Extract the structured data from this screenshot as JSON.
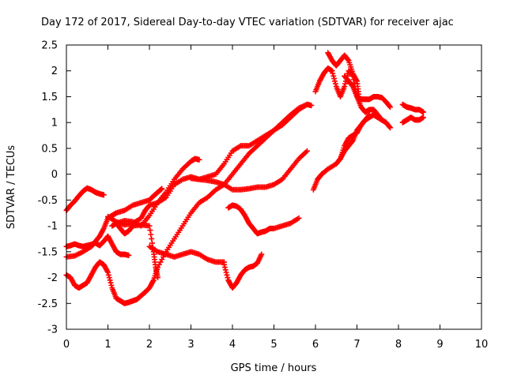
{
  "chart_data": {
    "type": "scatter",
    "title": "Day 172 of 2017, Sidereal Day-to-day VTEC variation (SDTVAR) for receiver ajac",
    "xlabel": "GPS time / hours",
    "ylabel": "SDTVAR / TECUs",
    "xlim": [
      0,
      10
    ],
    "ylim": [
      -3,
      2.5
    ],
    "xticks": [
      "0",
      "1",
      "2",
      "3",
      "4",
      "5",
      "6",
      "7",
      "8",
      "9",
      "10"
    ],
    "yticks": [
      "-3",
      "-2.5",
      "-2",
      "-1.5",
      "-1",
      "-0.5",
      "0",
      "0.5",
      "1",
      "1.5",
      "2",
      "2.5"
    ],
    "grid": false,
    "marker": "plus",
    "color": "#ff0000",
    "series": [
      {
        "x": [
          0.0,
          0.1,
          0.2,
          0.3,
          0.4,
          0.5,
          0.6,
          0.7,
          0.8,
          0.9
        ],
        "values": [
          -0.7,
          -0.6,
          -0.52,
          -0.42,
          -0.33,
          -0.27,
          -0.3,
          -0.35,
          -0.38,
          -0.4
        ]
      },
      {
        "x": [
          0.0,
          0.1,
          0.2,
          0.3,
          0.4,
          0.5,
          0.6,
          0.7,
          0.8,
          0.9,
          1.0,
          1.1,
          1.2,
          1.3,
          1.4,
          1.5,
          1.6
        ],
        "values": [
          -1.95,
          -2.0,
          -2.15,
          -2.2,
          -2.15,
          -2.1,
          -1.95,
          -1.8,
          -1.7,
          -1.75,
          -1.9,
          -2.2,
          -2.4,
          -2.45,
          -2.5,
          -2.48,
          -2.45
        ]
      },
      {
        "x": [
          1.6,
          1.7,
          1.8,
          1.9,
          2.0,
          2.1,
          2.2
        ],
        "values": [
          -2.45,
          -2.42,
          -2.35,
          -2.28,
          -2.2,
          -2.05,
          -1.8
        ]
      },
      {
        "x": [
          0.0,
          0.1,
          0.2,
          0.3,
          0.4,
          0.5,
          0.6,
          0.7,
          0.8,
          0.9,
          1.0,
          1.1,
          1.2,
          1.3,
          1.4,
          1.5
        ],
        "values": [
          -1.4,
          -1.38,
          -1.35,
          -1.38,
          -1.4,
          -1.38,
          -1.36,
          -1.33,
          -1.38,
          -1.3,
          -1.2,
          -1.35,
          -1.5,
          -1.55,
          -1.55,
          -1.57
        ]
      },
      {
        "x": [
          0.0,
          0.2,
          0.4,
          0.6,
          0.7,
          0.8,
          0.9,
          1.0,
          1.1,
          1.2,
          1.4,
          1.6,
          1.8,
          2.0,
          2.1,
          2.2,
          2.3
        ],
        "values": [
          -1.6,
          -1.58,
          -1.5,
          -1.4,
          -1.3,
          -1.2,
          -1.05,
          -0.85,
          -0.8,
          -0.75,
          -0.7,
          -0.6,
          -0.55,
          -0.5,
          -0.42,
          -0.35,
          -0.28
        ]
      },
      {
        "x": [
          1.0,
          1.2,
          1.4,
          1.6,
          1.8,
          1.9,
          2.0,
          2.2,
          2.4,
          2.6,
          2.8,
          3.0,
          3.2,
          3.4,
          3.6,
          3.8,
          4.0,
          4.2,
          4.4,
          4.6,
          4.8,
          5.0,
          5.2,
          5.4,
          5.6,
          5.8
        ],
        "values": [
          -0.82,
          -0.92,
          -0.98,
          -0.95,
          -0.85,
          -0.7,
          -0.6,
          -0.55,
          -0.45,
          -0.2,
          -0.1,
          -0.05,
          -0.1,
          -0.12,
          -0.15,
          -0.2,
          -0.3,
          -0.3,
          -0.28,
          -0.25,
          -0.25,
          -0.2,
          -0.1,
          0.1,
          0.3,
          0.45
        ]
      },
      {
        "x": [
          1.1,
          1.2,
          1.4,
          1.6,
          1.8,
          2.0,
          2.2,
          2.4,
          2.6,
          2.8,
          3.0,
          3.1,
          3.2
        ],
        "values": [
          -1.0,
          -0.95,
          -0.9,
          -0.92,
          -1.0,
          -0.8,
          -0.55,
          -0.35,
          -0.1,
          0.1,
          0.25,
          0.3,
          0.28
        ]
      },
      {
        "x": [
          1.2,
          1.3,
          1.4,
          1.5,
          1.6,
          1.8,
          2.0,
          2.1,
          2.15,
          2.2
        ],
        "values": [
          -0.95,
          -1.05,
          -1.15,
          -1.1,
          -1.0,
          -0.98,
          -1.0,
          -1.5,
          -1.8,
          -2.0
        ]
      },
      {
        "x": [
          2.2,
          2.4,
          2.6,
          2.8,
          3.0,
          3.2,
          3.4,
          3.6,
          3.8,
          4.0,
          4.2,
          4.4,
          4.6,
          4.8,
          5.0,
          5.2,
          5.4,
          5.6,
          5.8,
          5.9
        ],
        "values": [
          -1.8,
          -1.5,
          -1.25,
          -1.0,
          -0.75,
          -0.55,
          -0.45,
          -0.3,
          -0.2,
          0.0,
          0.2,
          0.4,
          0.55,
          0.7,
          0.85,
          1.0,
          1.15,
          1.28,
          1.35,
          1.33
        ]
      },
      {
        "x": [
          2.0,
          2.2,
          2.4,
          2.6,
          2.8,
          3.0,
          3.2,
          3.4,
          3.6,
          3.8
        ],
        "values": [
          -1.4,
          -1.5,
          -1.55,
          -1.6,
          -1.55,
          -1.5,
          -1.55,
          -1.65,
          -1.7,
          -1.7
        ]
      },
      {
        "x": [
          3.8,
          3.9,
          4.0,
          4.1,
          4.2,
          4.3,
          4.4,
          4.5,
          4.6,
          4.7
        ],
        "values": [
          -1.75,
          -2.05,
          -2.2,
          -2.1,
          -1.95,
          -1.85,
          -1.8,
          -1.78,
          -1.72,
          -1.55
        ]
      },
      {
        "x": [
          3.9,
          4.0,
          4.1,
          4.2,
          4.3,
          4.4,
          4.5,
          4.6,
          4.7,
          4.8,
          4.9,
          5.0,
          5.2,
          5.4,
          5.6
        ],
        "values": [
          -0.65,
          -0.6,
          -0.62,
          -0.68,
          -0.8,
          -0.95,
          -1.05,
          -1.15,
          -1.12,
          -1.1,
          -1.05,
          -1.05,
          -1.0,
          -0.95,
          -0.85
        ]
      },
      {
        "x": [
          3.0,
          3.2,
          3.4,
          3.6,
          3.8,
          4.0,
          4.2,
          4.4,
          4.6,
          4.8,
          5.0
        ],
        "values": [
          -0.08,
          -0.1,
          -0.05,
          0.0,
          0.2,
          0.45,
          0.55,
          0.55,
          0.65,
          0.75,
          0.85
        ]
      },
      {
        "x": [
          5.0,
          5.2,
          5.4,
          5.6,
          5.8
        ],
        "values": [
          0.85,
          0.95,
          1.1,
          1.25,
          1.35
        ]
      },
      {
        "x": [
          6.0,
          6.1,
          6.2,
          6.3,
          6.4,
          6.5,
          6.6,
          6.7,
          6.8,
          6.9,
          7.0,
          7.1,
          7.2,
          7.3,
          7.4,
          7.5,
          7.6
        ],
        "values": [
          1.6,
          1.8,
          1.95,
          2.05,
          2.0,
          1.7,
          1.5,
          1.7,
          2.0,
          1.9,
          1.5,
          1.3,
          1.2,
          1.25,
          1.25,
          1.15,
          1.05
        ]
      },
      {
        "x": [
          6.3,
          6.4,
          6.5,
          6.6,
          6.7,
          6.8,
          6.9,
          7.0,
          7.05
        ],
        "values": [
          2.35,
          2.2,
          2.1,
          2.2,
          2.3,
          2.2,
          1.95,
          1.8,
          1.5
        ]
      },
      {
        "x": [
          6.7,
          6.8,
          6.9,
          7.0,
          7.1,
          7.2,
          7.3,
          7.4,
          7.5,
          7.6,
          7.7,
          7.8
        ],
        "values": [
          1.9,
          1.8,
          1.7,
          1.5,
          1.45,
          1.45,
          1.45,
          1.5,
          1.5,
          1.48,
          1.4,
          1.3
        ]
      },
      {
        "x": [
          5.95,
          6.05,
          6.15,
          6.3,
          6.5,
          6.6,
          6.7,
          6.8,
          6.9,
          7.0,
          7.1,
          7.2,
          7.3,
          7.4,
          7.5,
          7.6,
          7.7,
          7.8
        ],
        "values": [
          -0.3,
          -0.1,
          0.0,
          0.1,
          0.2,
          0.3,
          0.55,
          0.7,
          0.75,
          0.8,
          0.95,
          1.05,
          1.1,
          1.15,
          1.1,
          1.05,
          1.0,
          0.9
        ]
      },
      {
        "x": [
          6.6,
          6.7,
          6.8,
          6.9,
          7.0,
          7.1,
          7.2,
          7.3
        ],
        "values": [
          0.3,
          0.45,
          0.55,
          0.65,
          0.85,
          0.95,
          1.05,
          1.15
        ]
      },
      {
        "x": [
          8.1,
          8.2,
          8.3,
          8.4,
          8.5,
          8.6
        ],
        "values": [
          1.35,
          1.3,
          1.28,
          1.25,
          1.25,
          1.2
        ]
      },
      {
        "x": [
          8.1,
          8.2,
          8.3,
          8.4,
          8.5,
          8.6
        ],
        "values": [
          1.0,
          1.05,
          1.1,
          1.05,
          1.05,
          1.1
        ]
      }
    ]
  }
}
